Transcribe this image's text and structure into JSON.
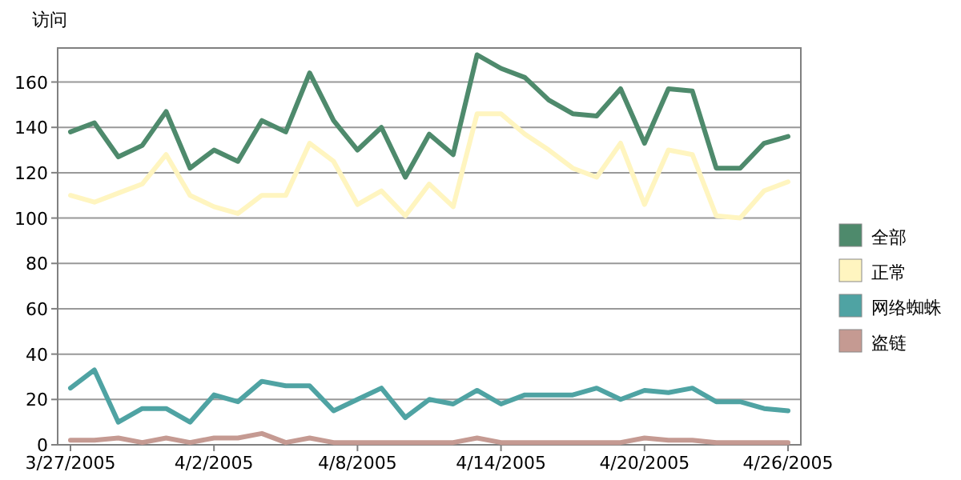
{
  "chart_data": {
    "type": "line",
    "ylabel": "访问",
    "categories": [
      "3/27/2005",
      null,
      null,
      null,
      null,
      null,
      "4/2/2005",
      null,
      null,
      null,
      null,
      null,
      "4/8/2005",
      null,
      null,
      null,
      null,
      null,
      "4/14/2005",
      null,
      null,
      null,
      null,
      null,
      "4/20/2005",
      null,
      null,
      null,
      null,
      null,
      "4/26/2005"
    ],
    "series": [
      {
        "name": "全部",
        "color": "#4e8a6c",
        "values": [
          138,
          142,
          127,
          132,
          147,
          122,
          130,
          125,
          143,
          138,
          164,
          143,
          130,
          140,
          118,
          137,
          128,
          172,
          166,
          162,
          152,
          146,
          145,
          157,
          133,
          157,
          156,
          122,
          122,
          133,
          136
        ]
      },
      {
        "name": "正常",
        "color": "#fff5c0",
        "values": [
          110,
          107,
          111,
          115,
          128,
          110,
          105,
          102,
          110,
          110,
          133,
          125,
          106,
          112,
          101,
          115,
          105,
          146,
          146,
          137,
          130,
          122,
          118,
          133,
          106,
          130,
          128,
          101,
          100,
          112,
          116
        ]
      },
      {
        "name": "网络蜘蛛",
        "color": "#4fa3a3",
        "values": [
          25,
          33,
          10,
          16,
          16,
          10,
          22,
          19,
          28,
          26,
          26,
          15,
          20,
          25,
          12,
          20,
          18,
          24,
          18,
          22,
          22,
          22,
          25,
          20,
          24,
          23,
          25,
          19,
          19,
          16,
          15
        ]
      },
      {
        "name": "盗链",
        "color": "#c59a92",
        "values": [
          2,
          2,
          3,
          1,
          3,
          1,
          3,
          3,
          5,
          1,
          3,
          1,
          1,
          1,
          1,
          1,
          1,
          3,
          1,
          1,
          1,
          1,
          1,
          1,
          3,
          2,
          2,
          1,
          1,
          1,
          1
        ]
      }
    ],
    "ylim": [
      0,
      175
    ],
    "yticks": [
      0,
      20,
      40,
      60,
      80,
      100,
      120,
      140,
      160
    ],
    "grid": "y",
    "legend": "right",
    "marker": "none",
    "line_style": "solid"
  }
}
